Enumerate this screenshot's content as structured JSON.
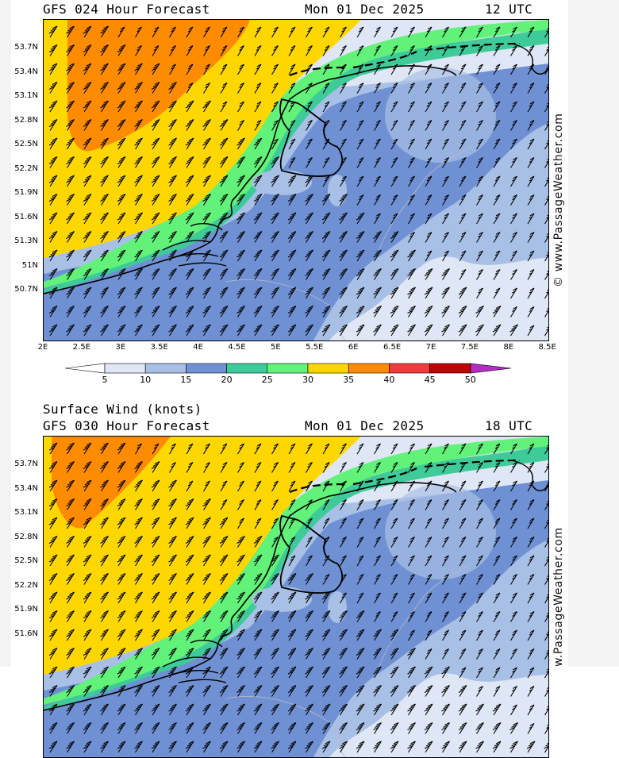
{
  "panels": [
    {
      "title_left": "GFS 024 Hour Forecast",
      "title_date": "Mon 01 Dec 2025",
      "title_time": "12 UTC",
      "credit": "© www.PassageWeather.com"
    },
    {
      "header": "Surface Wind (knots)",
      "title_left": "GFS 030 Hour Forecast",
      "title_date": "Mon 01 Dec 2025",
      "title_time": "18 UTC",
      "credit": "w.PassageWeather.com"
    }
  ],
  "lat_labels": [
    "53.7N",
    "53.4N",
    "53.1N",
    "52.8N",
    "52.5N",
    "52.2N",
    "51.9N",
    "51.6N",
    "51.3N",
    "51N",
    "50.7N"
  ],
  "lat_labels_panel2": [
    "53.7N",
    "53.4N",
    "53.1N",
    "52.8N",
    "52.5N",
    "52.2N",
    "51.9N",
    "51.6N"
  ],
  "lon_labels": [
    "2E",
    "2.5E",
    "3E",
    "3.5E",
    "4E",
    "4.5E",
    "5E",
    "5.5E",
    "6E",
    "6.5E",
    "7E",
    "7.5E",
    "8E",
    "8.5E"
  ],
  "legend": {
    "values": [
      "5",
      "10",
      "15",
      "20",
      "25",
      "30",
      "35",
      "40",
      "45",
      "50"
    ],
    "colors": [
      "#ffffff",
      "#dfe6f6",
      "#a9c0e6",
      "#6f91d3",
      "#3fcb99",
      "#62f27a",
      "#ffd700",
      "#ff8c00",
      "#ee3c3c",
      "#c00000",
      "#b22dc2"
    ]
  },
  "colors": {
    "wind_5_10": "#dfe6f6",
    "wind_10_15": "#a9c0e6",
    "wind_15_20": "#6f91d3",
    "wind_20_25": "#3fcb99",
    "wind_25_30": "#62f27a",
    "wind_30_35": "#ffd700",
    "wind_35_40": "#ff8c00"
  }
}
